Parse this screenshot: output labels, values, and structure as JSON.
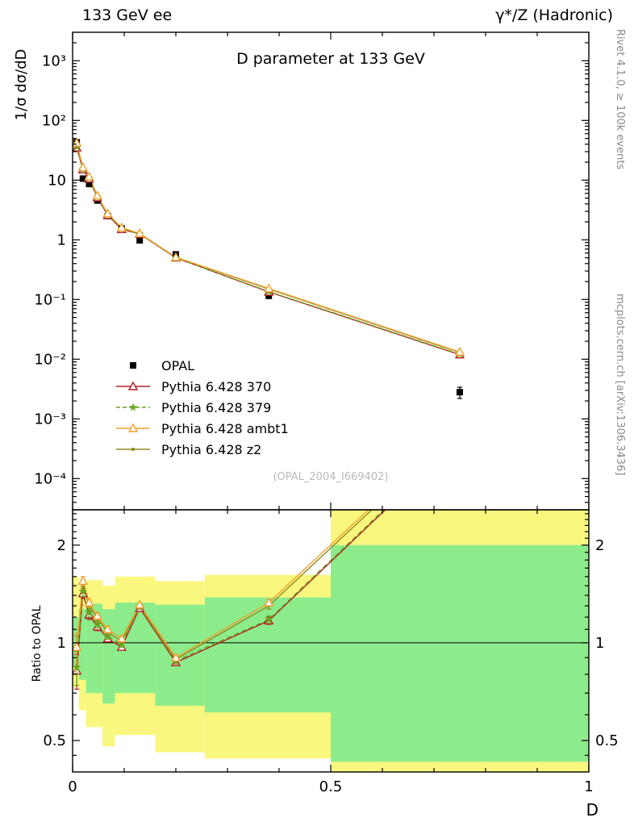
{
  "header": {
    "left": "133 GeV ee",
    "right": "γ*/Z (Hadronic)"
  },
  "notes": {
    "rivet": "Rivet 4.1.0, ≥ 100k events",
    "mcplots": "mcplots.cern.ch [arXiv:1306.3436]"
  },
  "watermark": "(OPAL_2004_I669402)",
  "chart_data": {
    "type": "line",
    "title": "D parameter at 133 GeV",
    "xlabel": "D",
    "xlim": [
      0,
      1
    ],
    "xticks": [
      {
        "v": 0,
        "label": "0"
      },
      {
        "v": 0.5,
        "label": "0.5"
      },
      {
        "v": 1,
        "label": "1"
      }
    ],
    "xminor": [
      0.1,
      0.2,
      0.3,
      0.4,
      0.6,
      0.7,
      0.8,
      0.9
    ],
    "x": [
      0.008,
      0.02,
      0.032,
      0.048,
      0.068,
      0.095,
      0.13,
      0.2,
      0.38,
      0.75
    ],
    "main": {
      "ylabel": "1/σ  dσ/dD",
      "scale": "log",
      "ylim": [
        3e-05,
        3000
      ],
      "yticks": [
        {
          "v": 1000,
          "label": "10³"
        },
        {
          "v": 100,
          "label": "10²"
        },
        {
          "v": 10,
          "label": "10"
        },
        {
          "v": 1,
          "label": "1"
        },
        {
          "v": 0.1,
          "label": "10⁻¹"
        },
        {
          "v": 0.01,
          "label": "10⁻²"
        },
        {
          "v": 0.001,
          "label": "10⁻³"
        },
        {
          "v": 0.0001,
          "label": "10⁻⁴"
        }
      ],
      "series": [
        {
          "name": "OPAL",
          "color": "#000000",
          "marker": "square",
          "line": "none",
          "values": [
            43,
            10.6,
            8.6,
            4.55,
            2.5,
            1.55,
            0.98,
            0.57,
            0.115,
            0.0028
          ],
          "yerr": [
            4,
            1.0,
            0.7,
            0.35,
            0.18,
            0.11,
            0.07,
            0.04,
            0.01,
            0.0006
          ]
        },
        {
          "name": "Pythia 6.428 370",
          "color": "#b22222",
          "marker": "triangle",
          "line": "solid",
          "values": [
            35,
            15.0,
            10.5,
            5.1,
            2.57,
            1.5,
            1.25,
            0.5,
            0.134,
            0.0119
          ]
        },
        {
          "name": "Pythia 6.428 379",
          "color": "#66a61e",
          "marker": "star",
          "line": "dashed",
          "values": [
            36,
            15.2,
            10.7,
            5.2,
            2.62,
            1.53,
            1.26,
            0.5,
            0.136,
            0.0121
          ]
        },
        {
          "name": "Pythia 6.428 ambt1",
          "color": "#f0a030",
          "marker": "triangle",
          "line": "solid",
          "values": [
            42,
            16.4,
            11.4,
            5.5,
            2.75,
            1.6,
            1.28,
            0.51,
            0.153,
            0.0132
          ]
        },
        {
          "name": "Pythia 6.428 z2",
          "color": "#8f8a20",
          "marker": "dot",
          "line": "solid",
          "values": [
            41,
            16.1,
            11.2,
            5.4,
            2.7,
            1.57,
            1.27,
            0.51,
            0.15,
            0.0129
          ]
        }
      ]
    },
    "ratio": {
      "ylabel": "Ratio to OPAL",
      "scale": "log",
      "ylim": [
        0.4,
        2.57
      ],
      "yticks": [
        {
          "v": 0.5,
          "label": "0.5"
        },
        {
          "v": 1,
          "label": "1"
        },
        {
          "v": 2,
          "label": "2"
        }
      ],
      "bands": {
        "yellow_color": "#faf77e",
        "green_color": "#8cec8c",
        "yellow": [
          {
            "x0": 0.0,
            "x1": 0.012,
            "lo": 0.73,
            "hi": 1.6
          },
          {
            "x0": 0.012,
            "x1": 0.026,
            "lo": 0.62,
            "hi": 1.5
          },
          {
            "x0": 0.026,
            "x1": 0.058,
            "lo": 0.55,
            "hi": 1.56
          },
          {
            "x0": 0.058,
            "x1": 0.082,
            "lo": 0.48,
            "hi": 1.5
          },
          {
            "x0": 0.082,
            "x1": 0.16,
            "lo": 0.52,
            "hi": 1.6
          },
          {
            "x0": 0.16,
            "x1": 0.256,
            "lo": 0.46,
            "hi": 1.55
          },
          {
            "x0": 0.256,
            "x1": 0.5,
            "lo": 0.44,
            "hi": 1.62
          },
          {
            "x0": 0.5,
            "x1": 1.0,
            "lo": 0.4,
            "hi": 2.57
          }
        ],
        "green": [
          {
            "x0": 0.0,
            "x1": 0.012,
            "lo": 0.85,
            "hi": 1.2
          },
          {
            "x0": 0.012,
            "x1": 0.026,
            "lo": 0.77,
            "hi": 1.27
          },
          {
            "x0": 0.026,
            "x1": 0.058,
            "lo": 0.7,
            "hi": 1.32
          },
          {
            "x0": 0.058,
            "x1": 0.082,
            "lo": 0.65,
            "hi": 1.27
          },
          {
            "x0": 0.082,
            "x1": 0.16,
            "lo": 0.7,
            "hi": 1.33
          },
          {
            "x0": 0.16,
            "x1": 0.256,
            "lo": 0.64,
            "hi": 1.31
          },
          {
            "x0": 0.256,
            "x1": 0.5,
            "lo": 0.61,
            "hi": 1.38
          },
          {
            "x0": 0.5,
            "x1": 1.0,
            "lo": 0.43,
            "hi": 2.0
          }
        ]
      },
      "series": [
        {
          "name": "Pythia 6.428 370",
          "values": [
            0.82,
            1.42,
            1.22,
            1.12,
            1.03,
            0.97,
            1.28,
            0.87,
            1.17,
            4.25
          ],
          "err": [
            0.1,
            0.05,
            0.04,
            0.03,
            0.025,
            0.02,
            0.02,
            0.02,
            0.03,
            0.8
          ]
        },
        {
          "name": "Pythia 6.428 379",
          "values": [
            0.84,
            1.44,
            1.24,
            1.14,
            1.05,
            0.99,
            1.29,
            0.88,
            1.18,
            4.3
          ],
          "err": [
            0.1,
            0.05,
            0.04,
            0.03,
            0.025,
            0.02,
            0.02,
            0.02,
            0.03,
            0.8
          ]
        },
        {
          "name": "Pythia 6.428 ambt1",
          "values": [
            0.97,
            1.55,
            1.33,
            1.21,
            1.1,
            1.03,
            1.31,
            0.9,
            1.33,
            4.7
          ],
          "err": [
            0.1,
            0.05,
            0.04,
            0.03,
            0.025,
            0.02,
            0.02,
            0.02,
            0.03,
            0.8
          ]
        },
        {
          "name": "Pythia 6.428 z2",
          "values": [
            0.95,
            1.52,
            1.3,
            1.19,
            1.08,
            1.01,
            1.3,
            0.89,
            1.3,
            4.6
          ],
          "err": [
            0.1,
            0.05,
            0.04,
            0.03,
            0.025,
            0.02,
            0.02,
            0.02,
            0.03,
            0.8
          ]
        }
      ]
    }
  }
}
